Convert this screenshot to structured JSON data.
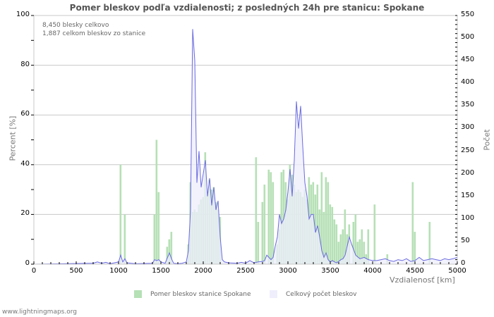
{
  "title": "Pomer bleskov podľa vzdialenosti; z posledných 24h pre stanicu: Spokane",
  "info": {
    "line1": "8,450 blesky celkovo",
    "line2": "1,887 celkom bleskov zo stanice"
  },
  "axes": {
    "y_left_label": "Percent   [%]",
    "y_right_label": "Počet",
    "x_label": "Vzdialenosť   [km]",
    "y_left_ticks": [
      "0",
      "20",
      "40",
      "60",
      "80",
      "100"
    ],
    "y_right_ticks": [
      "0",
      "50",
      "100",
      "150",
      "200",
      "250",
      "300",
      "350",
      "400",
      "450",
      "500",
      "550"
    ],
    "x_ticks": [
      "0",
      "500",
      "1000",
      "1500",
      "2000",
      "2500",
      "3000",
      "3500",
      "4000",
      "4500",
      "5000"
    ]
  },
  "legend": [
    {
      "label": "Pomer bleskov stanice Spokane",
      "color": "#b6e0b6"
    },
    {
      "label": "Celkový počet bleskov",
      "color": "#eeeefc"
    }
  ],
  "footer": "www.lightningmaps.org",
  "colors": {
    "bar": "#b6e0b6",
    "area_fill": "#eeeefc",
    "line": "#6a6ae0",
    "grid": "#c8c8c8"
  },
  "chart_data": {
    "type": "bar+area",
    "title": "Pomer bleskov podľa vzdialenosti; z posledných 24h pre stanicu: Spokane",
    "xlabel": "Vzdialenosť [km]",
    "ylabel_left": "Percent [%]",
    "ylabel_right": "Počet",
    "xlim": [
      0,
      5000
    ],
    "ylim_left": [
      0,
      100
    ],
    "ylim_right": [
      0,
      550
    ],
    "grid": true,
    "legend_position": "bottom",
    "series": [
      {
        "name": "Pomer bleskov stanice Spokane",
        "type": "bar",
        "axis": "left",
        "x": [
          1025,
          1075,
          1425,
          1450,
          1475,
          1575,
          1600,
          1625,
          1825,
          1850,
          1875,
          1900,
          1925,
          1950,
          1975,
          2000,
          2025,
          2050,
          2075,
          2100,
          2125,
          2150,
          2175,
          2200,
          2625,
          2650,
          2700,
          2725,
          2775,
          2800,
          2825,
          2875,
          2900,
          2925,
          2950,
          2975,
          3000,
          3025,
          3050,
          3075,
          3100,
          3125,
          3150,
          3175,
          3200,
          3225,
          3250,
          3275,
          3300,
          3325,
          3350,
          3375,
          3400,
          3425,
          3450,
          3475,
          3500,
          3525,
          3550,
          3575,
          3600,
          3625,
          3650,
          3675,
          3700,
          3725,
          3775,
          3800,
          3825,
          3850,
          3875,
          3900,
          3925,
          3950,
          4025,
          4175,
          4475,
          4500,
          4675
        ],
        "values": [
          40,
          20,
          20,
          50,
          29,
          7,
          10,
          13,
          8,
          33,
          21,
          22,
          21,
          24,
          26,
          27,
          45,
          28,
          34,
          30,
          31,
          25,
          22,
          19,
          43,
          17,
          25,
          32,
          38,
          37,
          33,
          8,
          14,
          37,
          38,
          33,
          26,
          40,
          36,
          32,
          29,
          30,
          29,
          27,
          30,
          26,
          35,
          32,
          33,
          28,
          32,
          22,
          37,
          21,
          35,
          33,
          24,
          23,
          18,
          16,
          9,
          12,
          14,
          22,
          12,
          16,
          17,
          20,
          9,
          10,
          14,
          9,
          4,
          14,
          24,
          4,
          33,
          13,
          17
        ]
      },
      {
        "name": "Celkový počet bleskov",
        "type": "area",
        "axis": "right",
        "x": [
          0,
          700,
          750,
          800,
          850,
          900,
          950,
          1000,
          1025,
          1050,
          1075,
          1100,
          1150,
          1200,
          1400,
          1425,
          1450,
          1475,
          1500,
          1550,
          1600,
          1625,
          1650,
          1700,
          1750,
          1800,
          1825,
          1850,
          1875,
          1900,
          1925,
          1950,
          1975,
          2000,
          2025,
          2050,
          2075,
          2100,
          2125,
          2150,
          2175,
          2200,
          2225,
          2250,
          2300,
          2400,
          2450,
          2500,
          2550,
          2600,
          2650,
          2700,
          2725,
          2750,
          2800,
          2825,
          2850,
          2875,
          2900,
          2925,
          2950,
          2975,
          3000,
          3025,
          3050,
          3075,
          3100,
          3125,
          3150,
          3175,
          3200,
          3225,
          3250,
          3275,
          3300,
          3325,
          3350,
          3375,
          3400,
          3425,
          3450,
          3475,
          3500,
          3525,
          3550,
          3575,
          3600,
          3625,
          3650,
          3675,
          3700,
          3725,
          3750,
          3800,
          3850,
          3900,
          3950,
          4000,
          4050,
          4100,
          4150,
          4200,
          4250,
          4300,
          4350,
          4400,
          4450,
          4500,
          4550,
          4600,
          4650,
          4700,
          4750,
          4800,
          4850,
          4900,
          4950,
          5000
        ],
        "values": [
          0,
          2,
          5,
          2,
          4,
          1,
          3,
          5,
          20,
          5,
          12,
          3,
          2,
          1,
          2,
          10,
          8,
          10,
          5,
          2,
          25,
          12,
          2,
          1,
          2,
          5,
          30,
          120,
          520,
          450,
          180,
          250,
          170,
          200,
          230,
          150,
          190,
          130,
          170,
          120,
          140,
          60,
          10,
          5,
          3,
          2,
          4,
          2,
          8,
          3,
          5,
          6,
          8,
          20,
          10,
          15,
          40,
          60,
          110,
          90,
          100,
          120,
          160,
          210,
          150,
          230,
          360,
          300,
          350,
          260,
          180,
          150,
          100,
          110,
          110,
          70,
          85,
          60,
          30,
          15,
          25,
          10,
          5,
          8,
          5,
          3,
          6,
          10,
          12,
          20,
          40,
          60,
          45,
          20,
          12,
          15,
          10,
          8,
          8,
          10,
          12,
          8,
          6,
          10,
          8,
          12,
          6,
          8,
          15,
          8,
          10,
          12,
          10,
          8,
          12,
          10,
          12,
          15
        ]
      }
    ]
  }
}
